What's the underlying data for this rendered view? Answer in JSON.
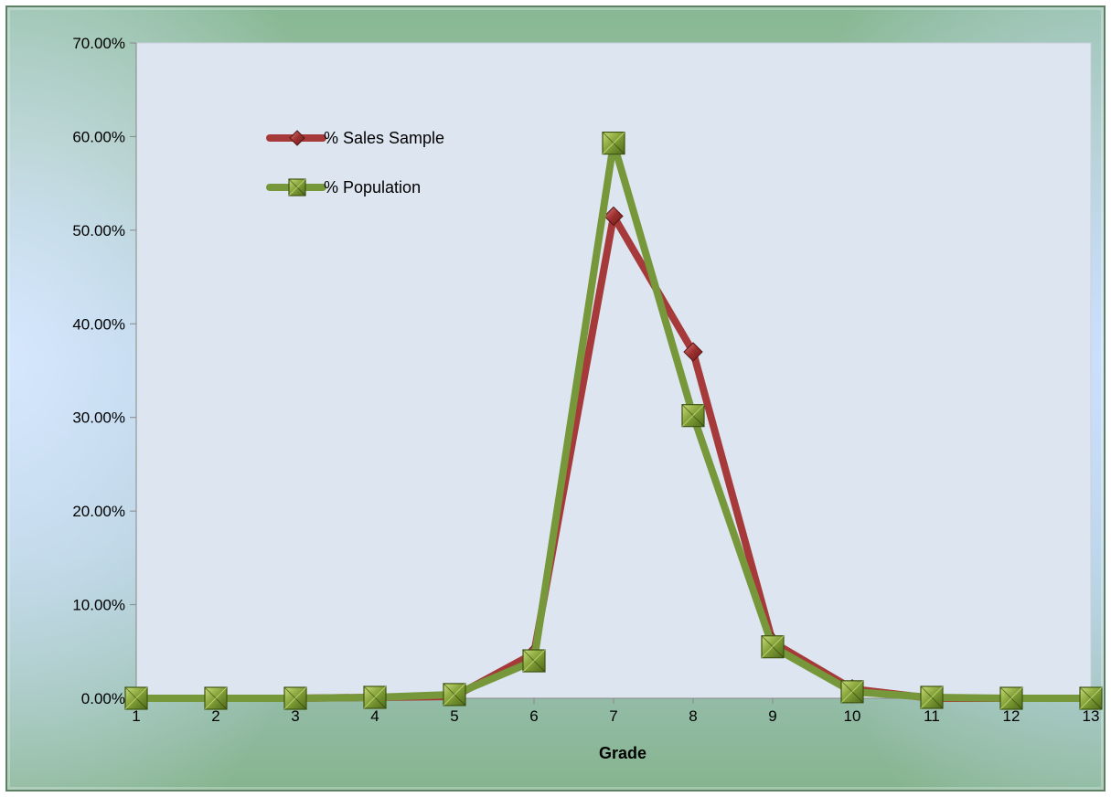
{
  "chart_data": {
    "type": "line",
    "title": "",
    "xlabel": "Grade",
    "ylabel": "",
    "x": [
      1,
      2,
      3,
      4,
      5,
      6,
      7,
      8,
      9,
      10,
      11,
      12,
      13
    ],
    "x_tick_labels": [
      "1",
      "2",
      "3",
      "4",
      "5",
      "6",
      "7",
      "8",
      "9",
      "10",
      "11",
      "12",
      "13"
    ],
    "ylim": [
      0,
      0.7
    ],
    "y_ticks": [
      0,
      0.1,
      0.2,
      0.3,
      0.4,
      0.5,
      0.6,
      0.7
    ],
    "y_tick_labels": [
      "0.00%",
      "10.00%",
      "20.00%",
      "30.00%",
      "40.00%",
      "50.00%",
      "60.00%",
      "70.00%"
    ],
    "grid": false,
    "legend_position": "top-left",
    "series": [
      {
        "name": "% Sales Sample",
        "marker": "diamond",
        "color": "#a63a3a",
        "marker_color": "#8e2a2a",
        "values": [
          0,
          0,
          0,
          0.001,
          0.002,
          0.048,
          0.515,
          0.37,
          0.06,
          0.01,
          0,
          0,
          0
        ]
      },
      {
        "name": "% Population",
        "marker": "square",
        "color": "#76973a",
        "marker_color": "#6b8a2e",
        "values": [
          0,
          0,
          0,
          0.001,
          0.004,
          0.04,
          0.593,
          0.302,
          0.055,
          0.007,
          0.001,
          0,
          0
        ]
      }
    ]
  },
  "colors": {
    "plot_background": "#dde6f0",
    "frame_border": "#5d7f63",
    "axis_line": "#888888"
  }
}
